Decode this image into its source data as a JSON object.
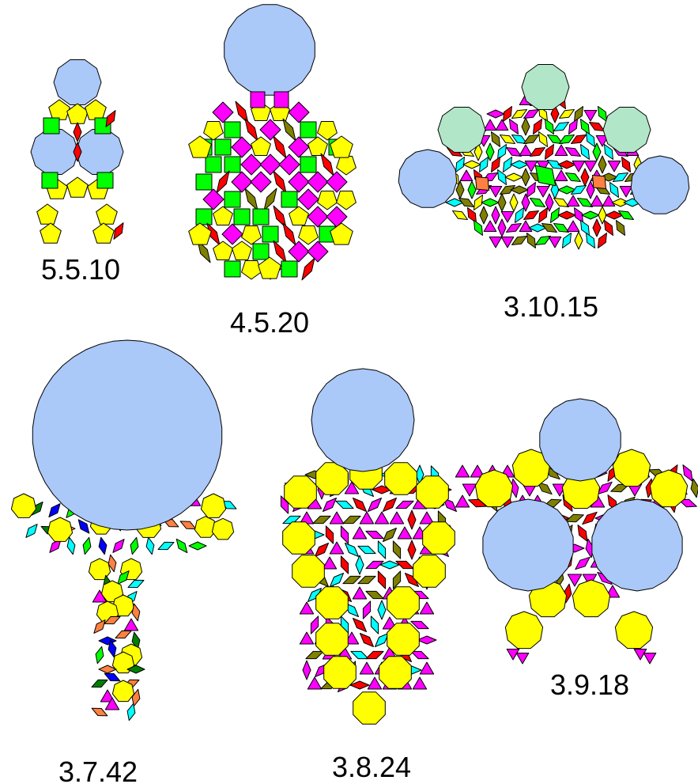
{
  "labels": {
    "t_5_5_10": "5.5.10",
    "t_4_5_20": "4.5.20",
    "t_3_10_15": "3.10.15",
    "t_3_7_42": "3.7.42",
    "t_3_8_24": "3.8.24",
    "t_3_9_18": "3.9.18"
  },
  "colors": {
    "big_polygon": "#aac8f8",
    "pale_green": "#b2e6c8",
    "yellow": "#ffff00",
    "magenta": "#ff00ff",
    "green": "#00ff00",
    "red": "#ff0000",
    "olive": "#808000",
    "cyan": "#00ffff",
    "orange": "#ff8040",
    "blue": "#0000ff",
    "dark_green": "#008000"
  }
}
